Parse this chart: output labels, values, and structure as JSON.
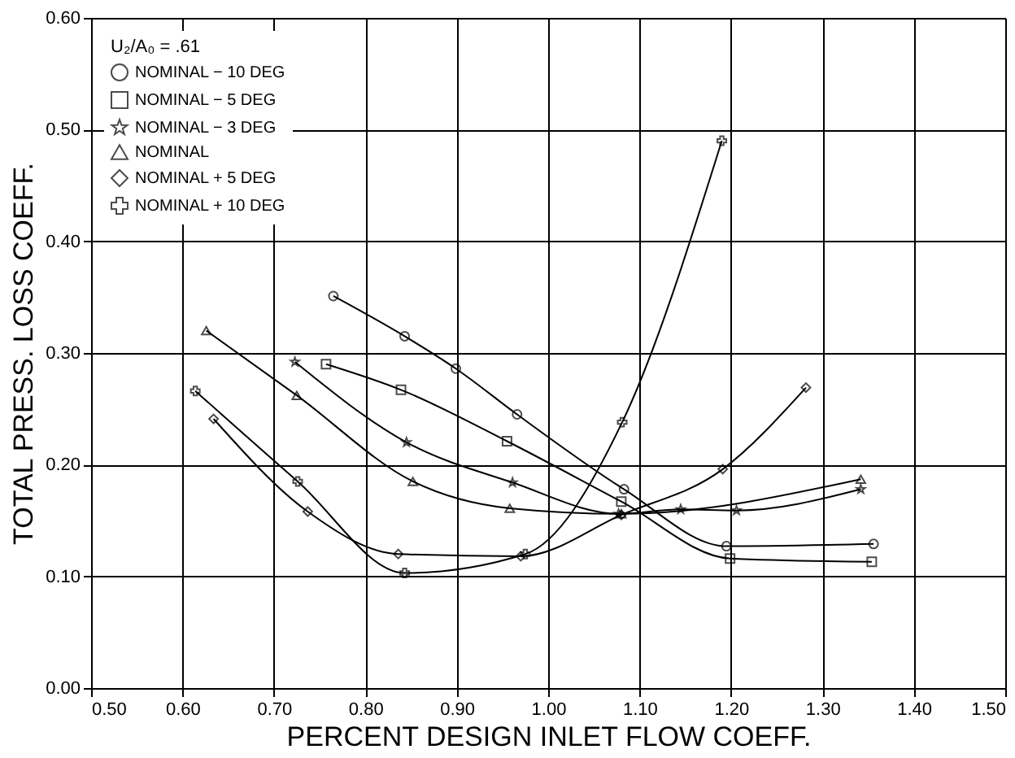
{
  "chart_data": {
    "type": "line",
    "xlabel": "PERCENT DESIGN INLET FLOW COEFF.",
    "ylabel": "TOTAL PRESS. LOSS COEFF.",
    "legend_title": "U₂/A₀ = .61",
    "xlim": [
      0.5,
      1.5
    ],
    "xticks": [
      {
        "value": 0.5,
        "label": "0.50"
      },
      {
        "value": 0.6,
        "label": "0.60"
      },
      {
        "value": 0.7,
        "label": "0.70"
      },
      {
        "value": 0.8,
        "label": "0.80"
      },
      {
        "value": 0.9,
        "label": "0.90"
      },
      {
        "value": 1.0,
        "label": "1.00"
      },
      {
        "value": 1.1,
        "label": "1.10"
      },
      {
        "value": 1.2,
        "label": "1.20"
      },
      {
        "value": 1.3,
        "label": "1.30"
      },
      {
        "value": 1.4,
        "label": "1.40"
      },
      {
        "value": 1.5,
        "label": "1.50"
      }
    ],
    "ylim": [
      0,
      0.6
    ],
    "yticks": [
      {
        "value": 0,
        "label": "0.00"
      },
      {
        "value": 0.1,
        "label": "0.10"
      },
      {
        "value": 0.2,
        "label": "0.20"
      },
      {
        "value": 0.3,
        "label": "0.30"
      },
      {
        "value": 0.4,
        "label": "0.40"
      },
      {
        "value": 0.5,
        "label": "0.50"
      },
      {
        "value": 0.6,
        "label": "0.60"
      }
    ],
    "grid": true,
    "legend": "top left",
    "line_style": "solid",
    "series": [
      {
        "name": "NOMINAL − 10 DEG",
        "color": "#000000",
        "marker": "circle",
        "x": [
          0.765,
          0.843,
          0.899,
          0.966,
          1.083,
          1.195,
          1.356
        ],
        "values": [
          0.351,
          0.315,
          0.286,
          0.245,
          0.178,
          0.127,
          0.129
        ]
      },
      {
        "name": "NOMINAL − 5 DEG",
        "color": "#000000",
        "marker": "square",
        "x": [
          0.757,
          0.839,
          0.955,
          1.08,
          1.199,
          1.354
        ],
        "values": [
          0.29,
          0.267,
          0.221,
          0.167,
          0.116,
          0.113
        ]
      },
      {
        "name": "NOMINAL − 3 DEG",
        "color": "#000000",
        "marker": "star",
        "x": [
          0.723,
          0.845,
          0.961,
          1.077,
          1.145,
          1.206,
          1.342
        ],
        "values": [
          0.292,
          0.22,
          0.184,
          0.156,
          0.16,
          0.159,
          0.178
        ]
      },
      {
        "name": "NOMINAL",
        "color": "#000000",
        "marker": "triangle",
        "x": [
          0.626,
          0.725,
          0.852,
          0.958,
          1.08,
          1.342
        ],
        "values": [
          0.32,
          0.262,
          0.185,
          0.161,
          0.156,
          0.187
        ]
      },
      {
        "name": "NOMINAL + 5 DEG",
        "color": "#000000",
        "marker": "diamond",
        "x": [
          0.634,
          0.737,
          0.836,
          0.97,
          1.08,
          1.191,
          1.282
        ],
        "values": [
          0.241,
          0.158,
          0.12,
          0.118,
          0.155,
          0.196,
          0.269
        ]
      },
      {
        "name": "NOMINAL + 10 DEG",
        "color": "#000000",
        "marker": "cross",
        "x": [
          0.614,
          0.726,
          0.843,
          0.975,
          1.081,
          1.19
        ],
        "values": [
          0.266,
          0.185,
          0.103,
          0.12,
          0.238,
          0.49
        ]
      }
    ]
  }
}
